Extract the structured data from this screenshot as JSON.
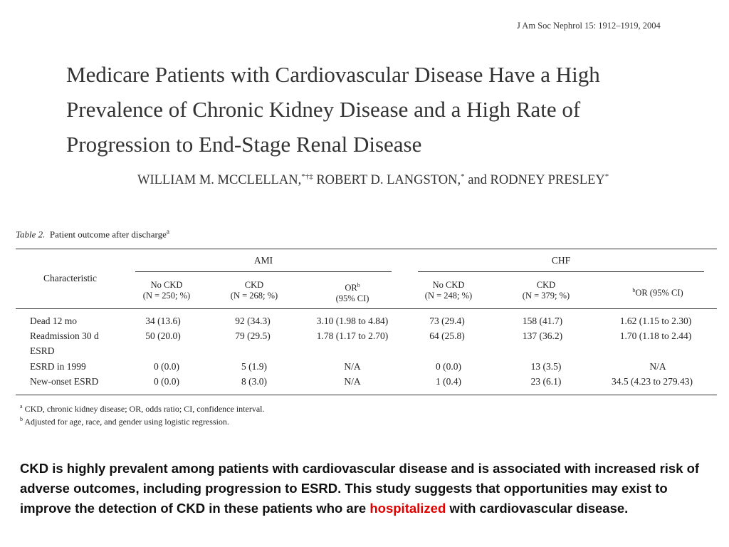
{
  "journal_ref": "J Am Soc Nephrol 15: 1912–1919, 2004",
  "title_lines": [
    "Medicare Patients with Cardiovascular Disease Have a High",
    "Prevalence of Chronic Kidney Disease and a High Rate of",
    "Progression to End-Stage Renal Disease"
  ],
  "authors": {
    "a1": "WILLIAM M. MCCLELLAN,",
    "a1_sup": "*†‡",
    "a2": " ROBERT D. LANGSTON,",
    "a2_sup": "*",
    "a3": " and RODNEY PRESLEY",
    "a3_sup": "*"
  },
  "table": {
    "label": "Table 2.",
    "caption": "Patient outcome after discharge",
    "caption_sup": "a",
    "characteristic_header": "Characteristic",
    "groups": [
      "AMI",
      "CHF"
    ],
    "columns": [
      {
        "l1": "No CKD",
        "l2": "(N = 250; %)"
      },
      {
        "l1": "CKD",
        "l2": "(N = 268; %)"
      },
      {
        "l1": "OR",
        "l1_sup": "b",
        "l2": "(95% CI)"
      },
      {
        "l1": "No CKD",
        "l2": "(N = 248; %)"
      },
      {
        "l1": "CKD",
        "l2": "(N = 379; %)"
      },
      {
        "l1": "OR (95% CI)",
        "l1_pre_sup": "b",
        "l2": ""
      }
    ],
    "rows": [
      {
        "label": "Dead 12 mo",
        "cells": [
          "34 (13.6)",
          "92 (34.3)",
          "3.10 (1.98 to 4.84)",
          "73 (29.4)",
          "158 (41.7)",
          "1.62 (1.15 to 2.30)"
        ]
      },
      {
        "label": "Readmission 30 d",
        "cells": [
          "50 (20.0)",
          "79 (29.5)",
          "1.78 (1.17 to 2.70)",
          "64 (25.8)",
          "137 (36.2)",
          "1.70 (1.18 to 2.44)"
        ]
      },
      {
        "label": "ESRD",
        "cells": [
          "",
          "",
          "",
          "",
          "",
          ""
        ]
      },
      {
        "label": "ESRD in 1999",
        "cells": [
          "0 (0.0)",
          "5 (1.9)",
          "N/A",
          "0 (0.0)",
          "13 (3.5)",
          "N/A"
        ]
      },
      {
        "label": "New-onset ESRD",
        "cells": [
          "0 (0.0)",
          "8 (3.0)",
          "N/A",
          "1 (0.4)",
          "23 (6.1)",
          "34.5 (4.23 to 279.43)"
        ]
      }
    ],
    "footnotes": [
      {
        "sup": "a",
        "text": " CKD, chronic kidney disease; OR, odds ratio; CI, confidence interval."
      },
      {
        "sup": "b",
        "text": " Adjusted for age, race, and gender using logistic regression."
      }
    ]
  },
  "summary": {
    "before": "CKD is highly prevalent among patients with cardiovascular disease and is associated with increased risk of adverse outcomes, including progression to ESRD. This study suggests that opportunities may exist to improve the detection of CKD in these patients who are ",
    "highlight": "hospitalized",
    "after": " with cardiovascular disease."
  },
  "colors": {
    "highlight": "#e00000",
    "text": "#1a1a1a"
  }
}
